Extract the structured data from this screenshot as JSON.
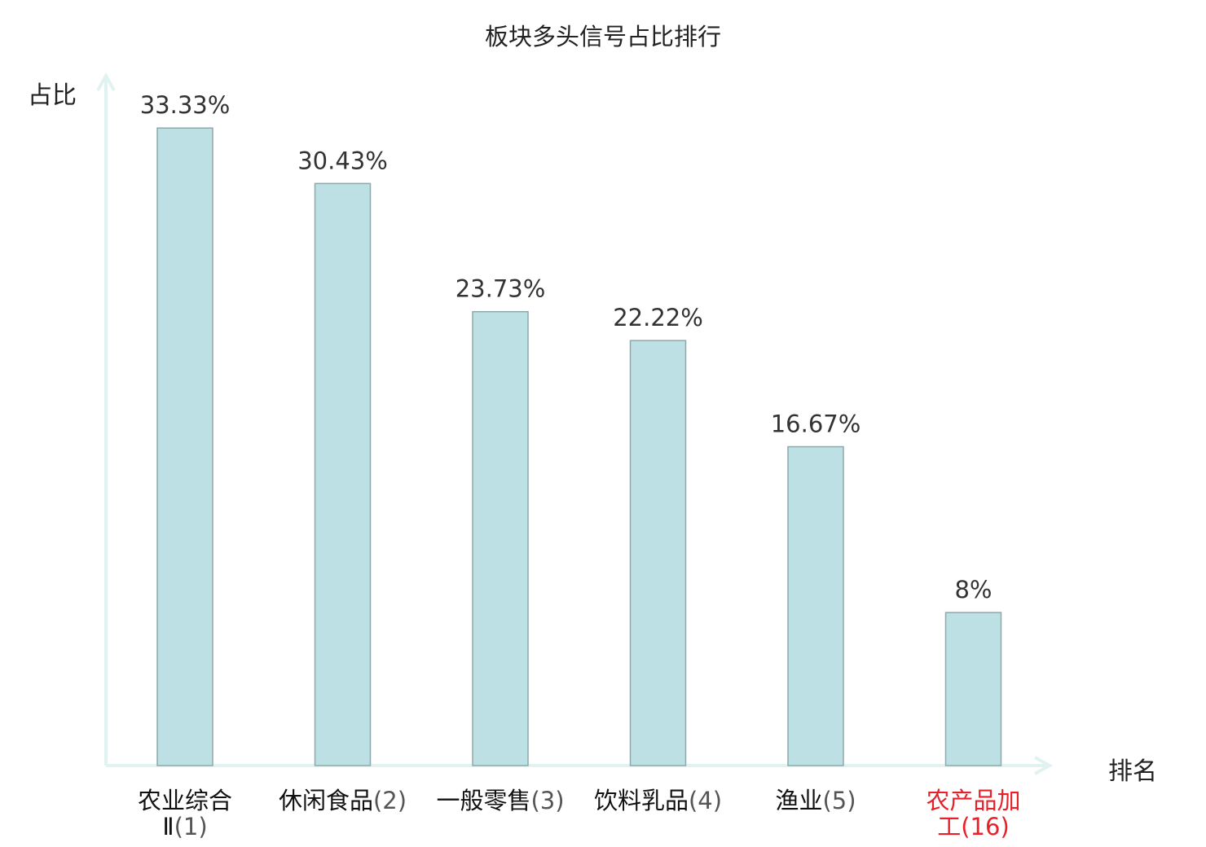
{
  "chart_data": {
    "type": "bar",
    "title": "板块多头信号占比排行",
    "ylabel": "占比",
    "xlabel": "排名",
    "ylim": [
      0,
      35
    ],
    "grid": false,
    "categories": [
      {
        "name": "农业综合",
        "name_cont": "Ⅱ",
        "rank": "(1)",
        "highlight": false
      },
      {
        "name": "休闲食品",
        "name_cont": "",
        "rank": "(2)",
        "highlight": false
      },
      {
        "name": "一般零售",
        "name_cont": "",
        "rank": "(3)",
        "highlight": false
      },
      {
        "name": "饮料乳品",
        "name_cont": "",
        "rank": "(4)",
        "highlight": false
      },
      {
        "name": "渔业",
        "name_cont": "",
        "rank": "(5)",
        "highlight": false
      },
      {
        "name": "农产品加",
        "name_cont": "工",
        "rank": "(16)",
        "highlight": true
      }
    ],
    "values": [
      33.33,
      30.43,
      23.73,
      22.22,
      16.67,
      8
    ],
    "value_labels": [
      "33.33%",
      "30.43%",
      "23.73%",
      "22.22%",
      "16.67%",
      "8%"
    ],
    "colors": {
      "bar_fill": "#bce0e3",
      "bar_stroke": "#8fa9aa",
      "axis": "#e1f3f1",
      "highlight": "#e8202a",
      "value_text": "#333333"
    }
  }
}
